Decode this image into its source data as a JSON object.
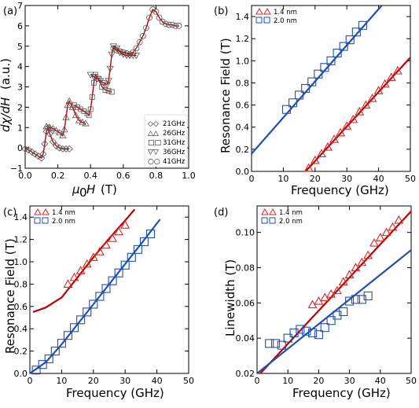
{
  "chart_data": [
    {
      "type": "line",
      "panel_label": "(a)",
      "xlabel": "μ0 H (T)",
      "ylabel": "dχ/dH (a.u.)",
      "xlim": [
        0.0,
        1.0
      ],
      "ylim": [
        -1,
        7
      ],
      "xticks": [
        "0.0",
        "0.2",
        "0.4",
        "0.6",
        "0.8",
        "1.0"
      ],
      "yticks": [
        "−1",
        "0",
        "1",
        "2",
        "3",
        "4",
        "5",
        "6",
        "7"
      ],
      "legend": [
        "21GHz",
        "26GHz",
        "31GHz",
        "36GHz",
        "41GHz"
      ],
      "legend_position": "lower-right",
      "series": [
        {
          "name": "21GHz",
          "x": [
            0.0,
            0.02,
            0.04,
            0.06,
            0.08,
            0.1,
            0.11,
            0.12,
            0.13,
            0.14,
            0.15,
            0.17,
            0.19,
            0.21,
            0.23,
            0.25,
            0.27
          ],
          "y": [
            -0.05,
            -0.1,
            -0.2,
            -0.3,
            -0.4,
            -0.5,
            -0.3,
            0.2,
            0.8,
            1.0,
            0.7,
            0.3,
            0.1,
            0.0,
            -0.05,
            -0.05,
            -0.05
          ]
        },
        {
          "name": "26GHz",
          "x": [
            0.13,
            0.15,
            0.17,
            0.19,
            0.21,
            0.23,
            0.24,
            0.25,
            0.26,
            0.27,
            0.29,
            0.31,
            0.33,
            0.35,
            0.37
          ],
          "y": [
            1.05,
            1.0,
            0.95,
            0.85,
            0.75,
            0.6,
            0.9,
            1.5,
            2.1,
            2.3,
            2.0,
            1.6,
            1.35,
            1.25,
            1.2
          ]
        },
        {
          "name": "31GHz",
          "x": [
            0.3,
            0.32,
            0.34,
            0.36,
            0.38,
            0.39,
            0.4,
            0.41,
            0.42,
            0.43,
            0.45,
            0.47,
            0.49,
            0.51,
            0.53
          ],
          "y": [
            2.1,
            2.0,
            1.9,
            1.8,
            1.7,
            1.6,
            1.9,
            2.5,
            3.2,
            3.6,
            3.4,
            3.0,
            2.85,
            2.8,
            2.75
          ]
        },
        {
          "name": "36GHz",
          "x": [
            0.4,
            0.42,
            0.44,
            0.46,
            0.48,
            0.5,
            0.51,
            0.52,
            0.53,
            0.54,
            0.56,
            0.58,
            0.6,
            0.62,
            0.64,
            0.66,
            0.68
          ],
          "y": [
            3.6,
            3.5,
            3.4,
            3.3,
            3.2,
            3.1,
            3.3,
            3.9,
            4.6,
            5.0,
            4.9,
            4.7,
            4.6,
            4.55,
            4.55,
            4.55,
            4.55
          ]
        },
        {
          "name": "41GHz",
          "x": [
            0.54,
            0.56,
            0.58,
            0.6,
            0.62,
            0.64,
            0.66,
            0.68,
            0.7,
            0.72,
            0.74,
            0.76,
            0.78,
            0.8,
            0.82,
            0.84,
            0.86,
            0.88,
            0.9,
            0.92,
            0.94
          ],
          "y": [
            4.9,
            4.8,
            4.75,
            4.7,
            4.65,
            4.6,
            4.7,
            4.9,
            5.2,
            5.5,
            5.9,
            6.4,
            6.8,
            6.7,
            6.4,
            6.2,
            6.1,
            6.05,
            6.05,
            6.0,
            6.0
          ]
        }
      ]
    },
    {
      "type": "line",
      "panel_label": "(b)",
      "xlabel": "Frequency (GHz)",
      "ylabel": "Resonance Field (T)",
      "xlim": [
        0,
        50
      ],
      "ylim": [
        0.0,
        1.5
      ],
      "xticks": [
        "0",
        "10",
        "20",
        "30",
        "40",
        "50"
      ],
      "yticks": [
        "0.0",
        "0.2",
        "0.4",
        "0.6",
        "0.8",
        "1.0",
        "1.2",
        "1.4"
      ],
      "legend": [
        "1.4 nm",
        "2.0 nm"
      ],
      "legend_position": "top-left",
      "series": [
        {
          "name": "1.4 nm",
          "color": "#d62728",
          "marker": "triangle",
          "x": [
            18,
            20,
            22,
            24,
            26,
            28,
            30,
            32,
            34,
            36,
            38,
            40,
            42,
            44,
            46
          ],
          "y": [
            0.03,
            0.1,
            0.16,
            0.22,
            0.29,
            0.35,
            0.41,
            0.47,
            0.54,
            0.6,
            0.66,
            0.73,
            0.79,
            0.85,
            0.91
          ]
        },
        {
          "name": "2.0 nm",
          "color": "#1f4fb0",
          "marker": "square",
          "x": [
            11,
            13,
            15,
            17,
            19,
            21,
            23,
            25,
            27,
            29,
            31,
            33,
            35
          ],
          "y": [
            0.56,
            0.62,
            0.69,
            0.75,
            0.81,
            0.88,
            0.94,
            1.0,
            1.07,
            1.13,
            1.19,
            1.26,
            1.32
          ]
        }
      ],
      "fit_lines": [
        {
          "series": "1.4 nm",
          "color": "#c00000",
          "x": [
            17,
            50
          ],
          "y": [
            0.0,
            1.03
          ]
        },
        {
          "series": "2.0 nm",
          "color": "#1f4fb0",
          "x": [
            0,
            41
          ],
          "y": [
            0.16,
            1.5
          ]
        }
      ]
    },
    {
      "type": "line",
      "panel_label": "(c)",
      "xlabel": "Frequency (GHz)",
      "ylabel": "Resonance Field (T)",
      "xlim": [
        0,
        50
      ],
      "ylim": [
        0.0,
        1.5
      ],
      "xticks": [
        "0",
        "10",
        "20",
        "30",
        "40",
        "50"
      ],
      "yticks": [
        "0.0",
        "0.2",
        "0.4",
        "0.6",
        "0.8",
        "1.0",
        "1.2",
        "1.4"
      ],
      "legend": [
        "1.4 nm",
        "2.0 nm"
      ],
      "legend_position": "top-left",
      "series": [
        {
          "name": "1.4 nm",
          "color": "#d62728",
          "marker": "triangle",
          "x": [
            12,
            14,
            16,
            18,
            20,
            22,
            24,
            26,
            28,
            30
          ],
          "y": [
            0.8,
            0.86,
            0.92,
            0.98,
            1.04,
            1.09,
            1.15,
            1.21,
            1.27,
            1.33
          ]
        },
        {
          "name": "2.0 nm",
          "color": "#1f4fb0",
          "marker": "square",
          "x": [
            2,
            4,
            6,
            8,
            10,
            12,
            14,
            16,
            18,
            20,
            22,
            24,
            26,
            28,
            30,
            32,
            34,
            36,
            38
          ],
          "y": [
            0.03,
            0.08,
            0.13,
            0.2,
            0.27,
            0.34,
            0.41,
            0.48,
            0.55,
            0.62,
            0.69,
            0.76,
            0.83,
            0.9,
            0.97,
            1.04,
            1.11,
            1.18,
            1.25
          ]
        }
      ],
      "fit_lines": [
        {
          "series": "1.4 nm",
          "color": "#c00000",
          "x": [
            1,
            5,
            10,
            15,
            20,
            25,
            30,
            33
          ],
          "y": [
            0.55,
            0.59,
            0.68,
            0.86,
            1.04,
            1.21,
            1.37,
            1.47
          ]
        },
        {
          "series": "2.0 nm",
          "color": "#1f4fb0",
          "x": [
            0,
            5,
            10,
            15,
            20,
            25,
            30,
            35,
            41
          ],
          "y": [
            0.0,
            0.1,
            0.26,
            0.44,
            0.62,
            0.8,
            0.98,
            1.16,
            1.38
          ]
        }
      ]
    },
    {
      "type": "scatter",
      "panel_label": "(d)",
      "xlabel": "Frequency (GHz)",
      "ylabel": "Linewidth (T)",
      "xlim": [
        0,
        50
      ],
      "ylim": [
        0.02,
        0.115
      ],
      "xticks": [
        "0",
        "10",
        "20",
        "30",
        "40",
        "50"
      ],
      "yticks": [
        "0.02",
        "0.04",
        "0.06",
        "0.08",
        "0.10"
      ],
      "legend": [
        "1.4 nm",
        "2.0 nm"
      ],
      "legend_position": "top-left",
      "series": [
        {
          "name": "1.4 nm",
          "color": "#d62728",
          "marker": "triangle",
          "x": [
            18,
            20,
            22,
            24,
            26,
            28,
            30,
            32,
            34,
            36,
            38,
            40,
            42,
            44,
            46
          ],
          "y": [
            0.059,
            0.061,
            0.063,
            0.065,
            0.067,
            0.072,
            0.076,
            0.08,
            0.083,
            0.087,
            0.094,
            0.097,
            0.1,
            0.103,
            0.107
          ]
        },
        {
          "name": "2.0 nm",
          "color": "#1f4fb0",
          "marker": "square",
          "x": [
            4,
            6,
            8,
            10,
            12,
            14,
            16,
            18,
            20,
            22,
            24,
            26,
            28,
            30,
            32,
            34,
            36
          ],
          "y": [
            0.037,
            0.037,
            0.036,
            0.04,
            0.043,
            0.045,
            0.044,
            0.043,
            0.042,
            0.046,
            0.05,
            0.053,
            0.055,
            0.061,
            0.062,
            0.062,
            0.064
          ]
        }
      ],
      "fit_lines": [
        {
          "series": "1.4 nm",
          "color": "#c00000",
          "x": [
            0,
            50
          ],
          "y": [
            0.018,
            0.112
          ]
        },
        {
          "series": "2.0 nm",
          "color": "#1f4fb0",
          "x": [
            0,
            50
          ],
          "y": [
            0.02,
            0.09
          ]
        }
      ]
    }
  ]
}
